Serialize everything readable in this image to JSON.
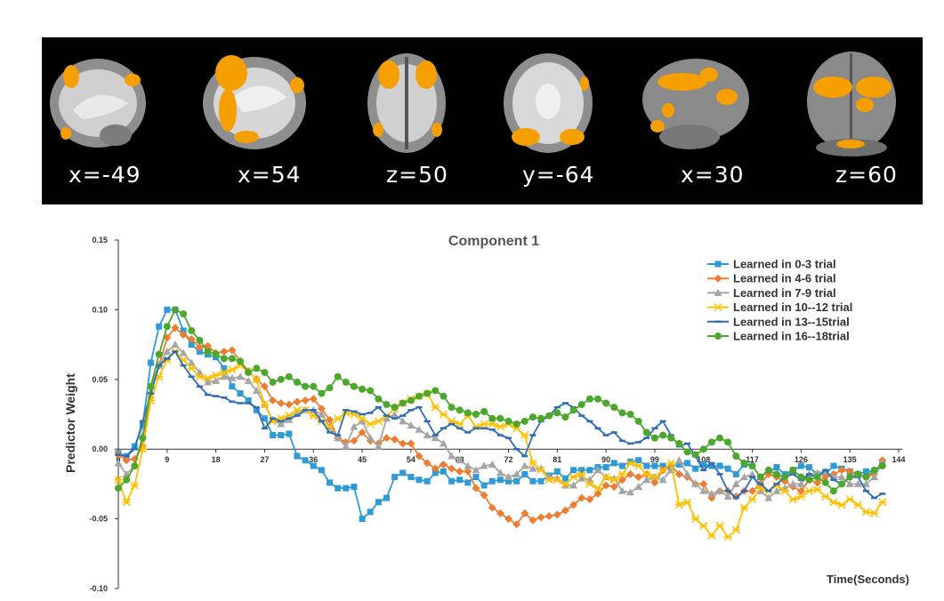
{
  "brain_panel": {
    "slices": [
      {
        "label": "x=-49"
      },
      {
        "label": "x=54"
      },
      {
        "label": "z=50"
      },
      {
        "label": "y=-64"
      },
      {
        "label": "x=30"
      },
      {
        "label": "z=60"
      }
    ],
    "colors": {
      "background": "#000000",
      "activation": "#F5A000",
      "tissue": "#9a9a9a"
    }
  },
  "chart_data": {
    "type": "line",
    "title": "Component 1",
    "xlabel": "Time(Seconds)",
    "ylabel": "Predictor Weight",
    "xlim": [
      0,
      144
    ],
    "ylim": [
      -0.1,
      0.15
    ],
    "x_ticks": [
      "0",
      "9",
      "18",
      "27",
      "36",
      "45",
      "54",
      "63",
      "72",
      "81",
      "90",
      "99",
      "108",
      "117",
      "126",
      "135",
      "144"
    ],
    "y_ticks": [
      "0.15",
      "0.10",
      "0.05",
      "0.00",
      "-0.05",
      "-0.10"
    ],
    "grid": false,
    "legend_position": "top-right",
    "x": [
      0,
      1.5,
      3,
      4.5,
      6,
      7.5,
      9,
      10.5,
      12,
      13.5,
      15,
      16.5,
      18,
      19.5,
      21,
      22.5,
      24,
      25.5,
      27,
      28.5,
      30,
      31.5,
      33,
      34.5,
      36,
      37.5,
      39,
      40.5,
      42,
      43.5,
      45,
      46.5,
      48,
      49.5,
      51,
      52.5,
      54,
      55.5,
      57,
      58.5,
      60,
      61.5,
      63,
      64.5,
      66,
      67.5,
      69,
      70.5,
      72,
      73.5,
      75,
      76.5,
      78,
      79.5,
      81,
      82.5,
      84,
      85.5,
      87,
      88.5,
      90,
      91.5,
      93,
      94.5,
      96,
      97.5,
      99,
      100.5,
      102,
      103.5,
      105,
      106.5,
      108,
      109.5,
      111,
      112.5,
      114,
      115.5,
      117,
      118.5,
      120,
      121.5,
      123,
      124.5,
      126,
      127.5,
      129,
      130.5,
      132,
      133.5,
      135,
      136.5,
      138,
      139.5,
      141
    ],
    "series": [
      {
        "name": "Learned in 0-3 trial",
        "color": "#2E9BD6",
        "marker": "square",
        "values": [
          -0.003,
          -0.005,
          0.002,
          0.017,
          0.062,
          0.088,
          0.1,
          0.1,
          0.085,
          0.075,
          0.07,
          0.068,
          0.066,
          0.058,
          0.045,
          0.04,
          0.035,
          0.028,
          0.022,
          0.01,
          0.01,
          0.011,
          -0.005,
          -0.008,
          -0.012,
          -0.015,
          -0.024,
          -0.028,
          -0.028,
          -0.027,
          -0.05,
          -0.045,
          -0.038,
          -0.035,
          -0.02,
          -0.017,
          -0.02,
          -0.022,
          -0.023,
          -0.017,
          -0.016,
          -0.023,
          -0.022,
          -0.024,
          -0.02,
          -0.026,
          -0.023,
          -0.022,
          -0.023,
          -0.023,
          -0.018,
          -0.023,
          -0.023,
          -0.019,
          -0.016,
          -0.021,
          -0.015,
          -0.015,
          -0.015,
          -0.013,
          -0.013,
          -0.01,
          -0.012,
          -0.009,
          -0.008,
          -0.012,
          -0.012,
          -0.012,
          -0.013,
          -0.011,
          -0.01,
          -0.014,
          -0.011,
          -0.012,
          -0.012,
          -0.014,
          -0.018,
          -0.011,
          -0.012,
          -0.02,
          -0.016,
          -0.013,
          -0.018,
          -0.015,
          -0.012,
          -0.013,
          -0.018,
          -0.018,
          -0.012,
          -0.014,
          -0.016,
          -0.018,
          -0.016,
          -0.016,
          -0.01
        ]
      },
      {
        "name": "Learned in 4-6 trial",
        "color": "#ED7D31",
        "marker": "diamond",
        "values": [
          -0.004,
          -0.008,
          -0.007,
          0.002,
          0.04,
          0.06,
          0.08,
          0.087,
          0.082,
          0.079,
          0.073,
          0.074,
          0.069,
          0.07,
          0.071,
          0.063,
          0.056,
          0.05,
          0.045,
          0.035,
          0.033,
          0.032,
          0.034,
          0.035,
          0.036,
          0.029,
          0.021,
          0.008,
          0.005,
          0.006,
          0.012,
          0.006,
          0.004,
          0.008,
          0.007,
          0.004,
          0.004,
          -0.005,
          -0.01,
          -0.014,
          -0.011,
          -0.014,
          -0.016,
          -0.016,
          -0.028,
          -0.033,
          -0.042,
          -0.046,
          -0.05,
          -0.054,
          -0.046,
          -0.051,
          -0.049,
          -0.048,
          -0.047,
          -0.044,
          -0.04,
          -0.035,
          -0.036,
          -0.032,
          -0.026,
          -0.027,
          -0.022,
          -0.018,
          -0.02,
          -0.018,
          -0.024,
          -0.015,
          -0.012,
          -0.018,
          -0.02,
          -0.025,
          -0.025,
          -0.035,
          -0.03,
          -0.03,
          -0.034,
          -0.03,
          -0.03,
          -0.025,
          -0.018,
          -0.02,
          -0.023,
          -0.027,
          -0.03,
          -0.022,
          -0.024,
          -0.02,
          -0.018,
          -0.015,
          -0.016,
          -0.018,
          -0.02,
          -0.018,
          -0.008
        ]
      },
      {
        "name": "Learned in 7-9 trial",
        "color": "#A5A5A5",
        "marker": "triangle",
        "values": [
          -0.01,
          -0.018,
          -0.012,
          0.01,
          0.045,
          0.06,
          0.07,
          0.075,
          0.069,
          0.062,
          0.055,
          0.048,
          0.049,
          0.052,
          0.051,
          0.052,
          0.049,
          0.042,
          0.032,
          0.021,
          0.018,
          0.021,
          0.026,
          0.028,
          0.028,
          0.025,
          0.016,
          0.008,
          0.002,
          0.016,
          0.02,
          0.008,
          0.002,
          0.022,
          0.025,
          0.02,
          0.017,
          0.014,
          0.01,
          0.008,
          0.004,
          -0.005,
          -0.008,
          -0.012,
          -0.015,
          -0.012,
          -0.011,
          -0.017,
          -0.02,
          -0.018,
          -0.012,
          -0.014,
          -0.014,
          -0.02,
          -0.021,
          -0.026,
          -0.026,
          -0.021,
          -0.022,
          -0.015,
          -0.02,
          -0.021,
          -0.03,
          -0.031,
          -0.027,
          -0.022,
          -0.02,
          -0.022,
          -0.015,
          -0.008,
          -0.018,
          -0.025,
          -0.03,
          -0.032,
          -0.03,
          -0.034,
          -0.025,
          -0.02,
          -0.018,
          -0.03,
          -0.035,
          -0.03,
          -0.028,
          -0.025,
          -0.025,
          -0.018,
          -0.017,
          -0.016,
          -0.02,
          -0.02,
          -0.025,
          -0.025,
          -0.025,
          -0.02,
          -0.01
        ]
      },
      {
        "name": "Learned in 10--12 trial",
        "color": "#FFC000",
        "marker": "star",
        "values": [
          -0.022,
          -0.038,
          -0.026,
          0.0,
          0.035,
          0.052,
          0.064,
          0.07,
          0.064,
          0.058,
          0.052,
          0.051,
          0.053,
          0.055,
          0.057,
          0.06,
          0.056,
          0.05,
          0.032,
          0.02,
          0.022,
          0.024,
          0.028,
          0.028,
          0.024,
          0.02,
          0.016,
          0.022,
          0.026,
          0.025,
          0.022,
          0.018,
          0.02,
          0.024,
          0.029,
          0.033,
          0.036,
          0.038,
          0.04,
          0.03,
          0.025,
          0.02,
          0.018,
          0.024,
          0.016,
          0.018,
          0.018,
          0.016,
          0.018,
          0.015,
          0.01,
          -0.01,
          -0.015,
          -0.022,
          -0.022,
          -0.025,
          -0.02,
          -0.018,
          -0.025,
          -0.028,
          -0.02,
          -0.022,
          -0.018,
          -0.01,
          -0.012,
          -0.018,
          -0.02,
          -0.015,
          -0.01,
          -0.04,
          -0.038,
          -0.05,
          -0.055,
          -0.062,
          -0.055,
          -0.063,
          -0.058,
          -0.042,
          -0.036,
          -0.028,
          -0.03,
          -0.026,
          -0.03,
          -0.036,
          -0.034,
          -0.03,
          -0.029,
          -0.034,
          -0.038,
          -0.04,
          -0.036,
          -0.04,
          -0.045,
          -0.046,
          -0.038
        ]
      },
      {
        "name": "Learned in 13--15trial",
        "color": "#2F6DB5",
        "marker": "dash",
        "values": [
          -0.004,
          -0.005,
          0.0,
          0.02,
          0.04,
          0.06,
          0.065,
          0.07,
          0.06,
          0.052,
          0.045,
          0.039,
          0.038,
          0.037,
          0.034,
          0.033,
          0.033,
          0.03,
          0.015,
          0.022,
          0.02,
          0.022,
          0.024,
          0.028,
          0.028,
          0.02,
          0.012,
          0.01,
          0.028,
          0.027,
          0.025,
          0.026,
          0.03,
          0.024,
          0.022,
          0.024,
          0.028,
          0.03,
          0.02,
          0.01,
          0.015,
          0.018,
          0.015,
          0.012,
          0.015,
          0.015,
          0.014,
          0.01,
          0.008,
          0.0,
          -0.005,
          0.01,
          0.02,
          0.024,
          0.03,
          0.033,
          0.03,
          0.024,
          0.02,
          0.015,
          0.01,
          0.012,
          0.006,
          0.004,
          0.005,
          0.008,
          0.015,
          0.02,
          0.01,
          0.002,
          0.004,
          -0.005,
          -0.015,
          -0.01,
          -0.018,
          -0.03,
          -0.035,
          -0.03,
          -0.02,
          -0.025,
          -0.03,
          -0.025,
          -0.02,
          -0.018,
          -0.022,
          -0.018,
          -0.02,
          -0.015,
          -0.022,
          -0.025,
          -0.02,
          -0.02,
          -0.03,
          -0.035,
          -0.032
        ]
      },
      {
        "name": "Learned in 16--18trial",
        "color": "#4CA82D",
        "marker": "circle",
        "values": [
          -0.028,
          -0.022,
          -0.012,
          0.008,
          0.045,
          0.068,
          0.088,
          0.1,
          0.097,
          0.085,
          0.078,
          0.07,
          0.068,
          0.065,
          0.065,
          0.063,
          0.055,
          0.058,
          0.055,
          0.048,
          0.05,
          0.052,
          0.048,
          0.045,
          0.045,
          0.04,
          0.044,
          0.052,
          0.048,
          0.045,
          0.043,
          0.042,
          0.036,
          0.032,
          0.03,
          0.033,
          0.035,
          0.038,
          0.04,
          0.042,
          0.038,
          0.03,
          0.028,
          0.026,
          0.025,
          0.027,
          0.022,
          0.022,
          0.02,
          0.018,
          0.02,
          0.023,
          0.022,
          0.024,
          0.026,
          0.023,
          0.028,
          0.032,
          0.036,
          0.036,
          0.033,
          0.03,
          0.026,
          0.025,
          0.02,
          0.012,
          0.008,
          0.01,
          0.008,
          0.004,
          -0.002,
          -0.004,
          0.0,
          0.005,
          0.008,
          0.005,
          -0.005,
          -0.01,
          -0.012,
          -0.02,
          -0.015,
          -0.018,
          -0.02,
          -0.015,
          -0.02,
          -0.022,
          -0.02,
          -0.024,
          -0.03,
          -0.025,
          -0.02,
          -0.018,
          -0.02,
          -0.015,
          -0.012
        ]
      }
    ]
  }
}
